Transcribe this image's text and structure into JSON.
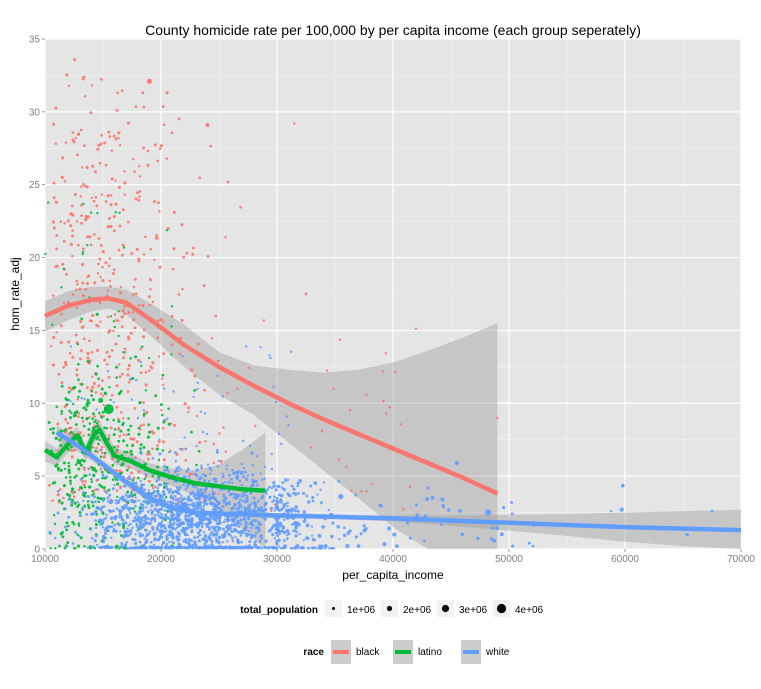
{
  "chart_data": {
    "type": "scatter",
    "title": "County homicide rate per 100,000 by per capita income (each group seperately)",
    "xlabel": "per_capita_income",
    "ylabel": "hom_rate_adj",
    "xlim": [
      10000,
      70000
    ],
    "ylim": [
      0,
      35
    ],
    "x_ticks": [
      10000,
      20000,
      30000,
      40000,
      50000,
      60000,
      70000
    ],
    "x_tick_labels": [
      "10000",
      "20000",
      "30000",
      "40000",
      "50000",
      "60000",
      "70000"
    ],
    "y_ticks": [
      0,
      5,
      10,
      15,
      20,
      25,
      30,
      35
    ],
    "y_tick_labels": [
      "0",
      "5",
      "10",
      "15",
      "20",
      "25",
      "30",
      "35"
    ],
    "grid": true,
    "background": "#e5e5e5",
    "legend_position": "bottom",
    "size_legend": {
      "title": "total_population",
      "entries": [
        {
          "label": "1e+06",
          "r": 1.5
        },
        {
          "label": "2e+06",
          "r": 2.6
        },
        {
          "label": "3e+06",
          "r": 3.6
        },
        {
          "label": "4e+06",
          "r": 4.6
        }
      ]
    },
    "color_legend": {
      "title": "race",
      "entries": [
        {
          "label": "black",
          "color": "#f8766d"
        },
        {
          "label": "latino",
          "color": "#00ba38"
        },
        {
          "label": "white",
          "color": "#619cff"
        }
      ]
    },
    "series": [
      {
        "name": "black",
        "color": "#f8766d",
        "smooth_x": [
          10000,
          12000,
          14000,
          15500,
          17000,
          19000,
          22000,
          25000,
          28000,
          31000,
          34000,
          37000,
          40000,
          43000,
          46000,
          49000
        ],
        "smooth_y": [
          16.0,
          16.7,
          17.1,
          17.2,
          16.9,
          15.8,
          14.0,
          12.5,
          11.2,
          10.0,
          8.9,
          7.9,
          6.9,
          5.9,
          4.9,
          3.8
        ],
        "ci_upper": [
          17.0,
          17.7,
          18.0,
          18.0,
          17.8,
          16.9,
          15.4,
          13.5,
          12.6,
          12.3,
          12.1,
          12.3,
          12.8,
          13.6,
          14.5,
          15.5
        ],
        "ci_lower": [
          14.9,
          15.7,
          16.3,
          16.5,
          16.1,
          14.7,
          12.5,
          10.6,
          9.2,
          7.3,
          5.4,
          3.5,
          1.5,
          0,
          0,
          0
        ],
        "x_range_points": [
          10000,
          49000
        ],
        "y_range_points": [
          0,
          35
        ]
      },
      {
        "name": "latino",
        "color": "#00ba38",
        "smooth_x": [
          10000,
          11000,
          12000,
          12800,
          13500,
          14200,
          14700,
          15300,
          16000,
          17500,
          19000,
          21000,
          23000,
          25000,
          27000,
          29000
        ],
        "smooth_y": [
          6.8,
          6.3,
          7.2,
          7.8,
          6.6,
          7.8,
          8.2,
          7.3,
          6.4,
          6.0,
          5.4,
          4.9,
          4.5,
          4.3,
          4.1,
          4.0
        ],
        "ci_upper": [
          7.4,
          6.9,
          7.8,
          8.4,
          7.2,
          8.4,
          8.8,
          7.9,
          7.0,
          6.5,
          5.9,
          5.5,
          5.4,
          5.8,
          6.8,
          8.0
        ],
        "ci_lower": [
          6.0,
          5.7,
          6.6,
          7.2,
          6.0,
          7.2,
          7.6,
          6.7,
          5.8,
          5.5,
          4.9,
          4.3,
          3.6,
          2.8,
          1.4,
          0
        ],
        "x_range_points": [
          10000,
          29000
        ],
        "y_range_points": [
          0,
          24
        ]
      },
      {
        "name": "white",
        "color": "#619cff",
        "smooth_x": [
          11000,
          13000,
          15000,
          17000,
          19000,
          21000,
          23000,
          26000,
          30000,
          35000,
          40000,
          45000,
          50000,
          55000,
          60000,
          65000,
          70000
        ],
        "smooth_y": [
          8.0,
          7.0,
          5.8,
          4.6,
          3.5,
          2.8,
          2.5,
          2.4,
          2.3,
          2.2,
          2.1,
          1.95,
          1.8,
          1.65,
          1.5,
          1.4,
          1.3
        ],
        "ci_upper": [
          8.5,
          7.4,
          6.1,
          4.9,
          3.8,
          3.0,
          2.65,
          2.55,
          2.45,
          2.35,
          2.3,
          2.3,
          2.35,
          2.4,
          2.5,
          2.6,
          2.7
        ],
        "ci_lower": [
          7.5,
          6.6,
          5.5,
          4.3,
          3.2,
          2.6,
          2.35,
          2.25,
          2.15,
          2.05,
          1.9,
          1.6,
          1.25,
          0.9,
          0.5,
          0.2,
          0
        ],
        "x_range_points": [
          10500,
          68000
        ],
        "y_range_points": [
          0,
          15
        ]
      }
    ],
    "highlighted_points": [
      {
        "race": "black",
        "x": 19000,
        "y": 32.1,
        "r": 2.6
      },
      {
        "race": "black",
        "x": 24000,
        "y": 29.1,
        "r": 2.0
      },
      {
        "race": "black",
        "x": 32500,
        "y": 17.5,
        "r": 1.4
      },
      {
        "race": "black",
        "x": 31500,
        "y": 29.2,
        "r": 1.2
      },
      {
        "race": "black",
        "x": 49000,
        "y": 9.0,
        "r": 1.2
      },
      {
        "race": "latino",
        "x": 15500,
        "y": 9.6,
        "r": 5.0
      },
      {
        "race": "latino",
        "x": 14500,
        "y": 16.1,
        "r": 1.6
      },
      {
        "race": "latino",
        "x": 14800,
        "y": 10.2,
        "r": 2.6
      },
      {
        "race": "white",
        "x": 45500,
        "y": 5.9,
        "r": 2.0
      },
      {
        "race": "white",
        "x": 48200,
        "y": 2.5,
        "r": 3.2
      },
      {
        "race": "white",
        "x": 35500,
        "y": 3.6,
        "r": 2.6
      },
      {
        "race": "white",
        "x": 67500,
        "y": 2.6,
        "r": 1.4
      },
      {
        "race": "white",
        "x": 58800,
        "y": 2.6,
        "r": 1.2
      }
    ]
  }
}
